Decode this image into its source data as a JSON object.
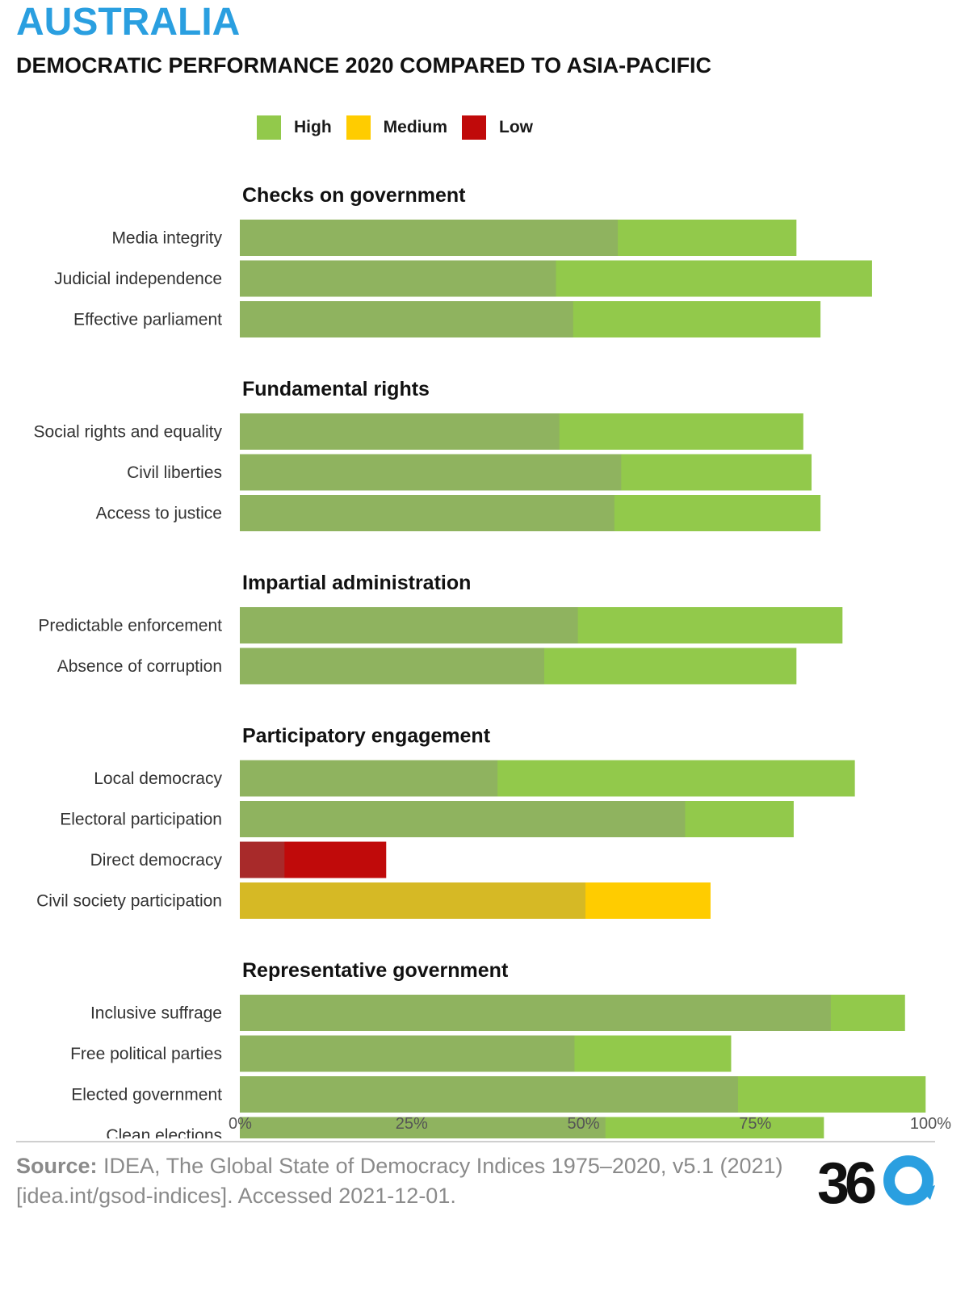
{
  "header": {
    "title": "AUSTRALIA",
    "subtitle": "DEMOCRATIC PERFORMANCE 2020 COMPARED TO ASIA-PACIFIC"
  },
  "legend": [
    {
      "label": "High",
      "color": "#92c94b"
    },
    {
      "label": "Medium",
      "color": "#ffcc00"
    },
    {
      "label": "Low",
      "color": "#c00a0a"
    }
  ],
  "colors": {
    "high_region": "#8fb35f",
    "high_country": "#92c94b",
    "medium_region": "#d6b925",
    "medium_country": "#ffcc00",
    "low_region": "#a82a2a",
    "low_country": "#c00a0a"
  },
  "chart_data": {
    "type": "bar",
    "orientation": "horizontal",
    "x_tick_labels": [
      "0%",
      "25%",
      "50%",
      "75%",
      "100%"
    ],
    "xlim": [
      0,
      1
    ],
    "note_series": [
      "Asia-Pacific (darker overlay)",
      "Australia (full bar)"
    ],
    "groups": [
      {
        "title": "Checks on government",
        "rows": [
          {
            "label": "Media integrity",
            "australia": 0.81,
            "asia_pacific": 0.55,
            "level": "high"
          },
          {
            "label": "Judicial independence",
            "australia": 0.92,
            "asia_pacific": 0.46,
            "level": "high"
          },
          {
            "label": "Effective parliament",
            "australia": 0.845,
            "asia_pacific": 0.485,
            "level": "high"
          }
        ]
      },
      {
        "title": "Fundamental rights",
        "rows": [
          {
            "label": "Social rights and equality",
            "australia": 0.82,
            "asia_pacific": 0.465,
            "level": "high"
          },
          {
            "label": "Civil liberties",
            "australia": 0.832,
            "asia_pacific": 0.555,
            "level": "high"
          },
          {
            "label": "Access to justice",
            "australia": 0.845,
            "asia_pacific": 0.545,
            "level": "high"
          }
        ]
      },
      {
        "title": "Impartial administration",
        "rows": [
          {
            "label": "Predictable enforcement",
            "australia": 0.877,
            "asia_pacific": 0.492,
            "level": "high"
          },
          {
            "label": "Absence of corruption",
            "australia": 0.81,
            "asia_pacific": 0.443,
            "level": "high"
          }
        ]
      },
      {
        "title": "Participatory engagement",
        "rows": [
          {
            "label": "Local democracy",
            "australia": 0.895,
            "asia_pacific": 0.375,
            "level": "high"
          },
          {
            "label": "Electoral participation",
            "australia": 0.806,
            "asia_pacific": 0.648,
            "level": "high"
          },
          {
            "label": "Direct democracy",
            "australia": 0.213,
            "asia_pacific": 0.065,
            "level": "low"
          },
          {
            "label": "Civil society participation",
            "australia": 0.685,
            "asia_pacific": 0.503,
            "level": "medium"
          }
        ]
      },
      {
        "title": "Representative government",
        "rows": [
          {
            "label": "Inclusive suffrage",
            "australia": 0.968,
            "asia_pacific": 0.86,
            "level": "high"
          },
          {
            "label": "Free political parties",
            "australia": 0.715,
            "asia_pacific": 0.487,
            "level": "high"
          },
          {
            "label": "Elected government",
            "australia": 0.998,
            "asia_pacific": 0.725,
            "level": "high"
          },
          {
            "label": "Clean elections",
            "australia": 0.85,
            "asia_pacific": 0.532,
            "level": "high"
          }
        ]
      }
    ]
  },
  "source": {
    "label": "Source:",
    "text": " IDEA, The Global State of Democracy Indices 1975–2020, v5.1 (2021)[idea.int/gsod-indices]. Accessed 2021-12-01."
  },
  "logo": {
    "text": "36",
    "icon": "refresh-arrow-icon"
  }
}
